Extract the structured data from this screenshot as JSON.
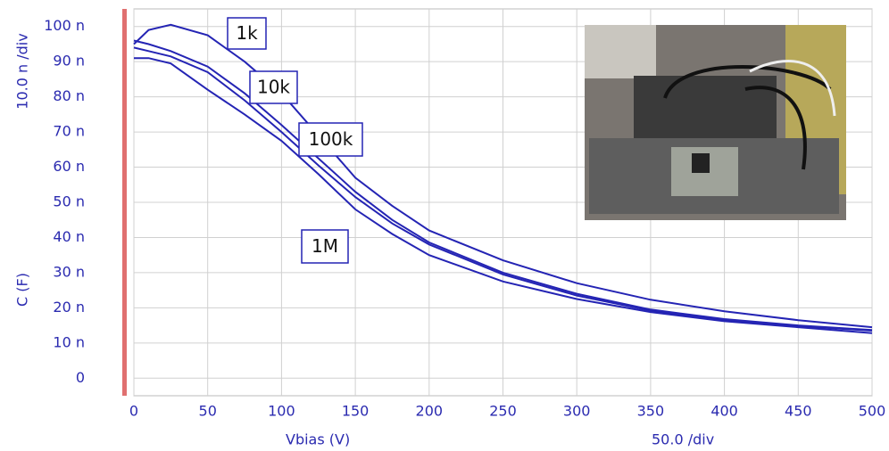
{
  "chart_data": {
    "type": "line",
    "x_label": "Vbias (V)",
    "x_scale_note": "50.0  /div",
    "y_label": "C (F)",
    "y_scale_note": "10.0 n /div",
    "x": [
      0,
      10,
      25,
      50,
      75,
      100,
      125,
      150,
      175,
      200,
      250,
      300,
      350,
      400,
      450,
      500
    ],
    "series": [
      {
        "name": "1k",
        "color": "#2424b4",
        "values": [
          95,
          99,
          100.5,
          97.5,
          90,
          81,
          69,
          57,
          49,
          42,
          33.5,
          27,
          22.3,
          19,
          16.5,
          14.5
        ]
      },
      {
        "name": "10k",
        "color": "#2424b4",
        "values": [
          96,
          95,
          93,
          88.6,
          81,
          72,
          62.5,
          53,
          45,
          38.6,
          30,
          24,
          19.5,
          16.8,
          15,
          13.7
        ]
      },
      {
        "name": "100k",
        "color": "#2424b4",
        "values": [
          94,
          93,
          91.5,
          87,
          79,
          70,
          60.5,
          51.5,
          44,
          38,
          29.5,
          23.5,
          19.2,
          16.6,
          14.8,
          13.5
        ]
      },
      {
        "name": "1M",
        "color": "#2424b4",
        "values": [
          91,
          91,
          89.5,
          82,
          75,
          67.5,
          58,
          48,
          41,
          35,
          27.5,
          22.5,
          18.8,
          16.2,
          14.5,
          12.8
        ]
      }
    ],
    "xlim": [
      0,
      500
    ],
    "xticks": [
      0,
      50,
      100,
      150,
      200,
      250,
      300,
      350,
      400,
      450,
      500
    ],
    "ylim": [
      -5,
      105
    ],
    "yticks": [
      0,
      {
        "value": 10,
        "label": "10 n"
      },
      {
        "value": 20,
        "label": "20 n"
      },
      {
        "value": 30,
        "label": "30 n"
      },
      {
        "value": 40,
        "label": "40 n"
      },
      {
        "value": 50,
        "label": "50 n"
      },
      {
        "value": 60,
        "label": "60 n"
      },
      {
        "value": 70,
        "label": "70 n"
      },
      {
        "value": 80,
        "label": "80 n"
      },
      {
        "value": 90,
        "label": "90 n"
      },
      {
        "value": 100,
        "label": "100 n"
      }
    ],
    "grid": true
  }
}
